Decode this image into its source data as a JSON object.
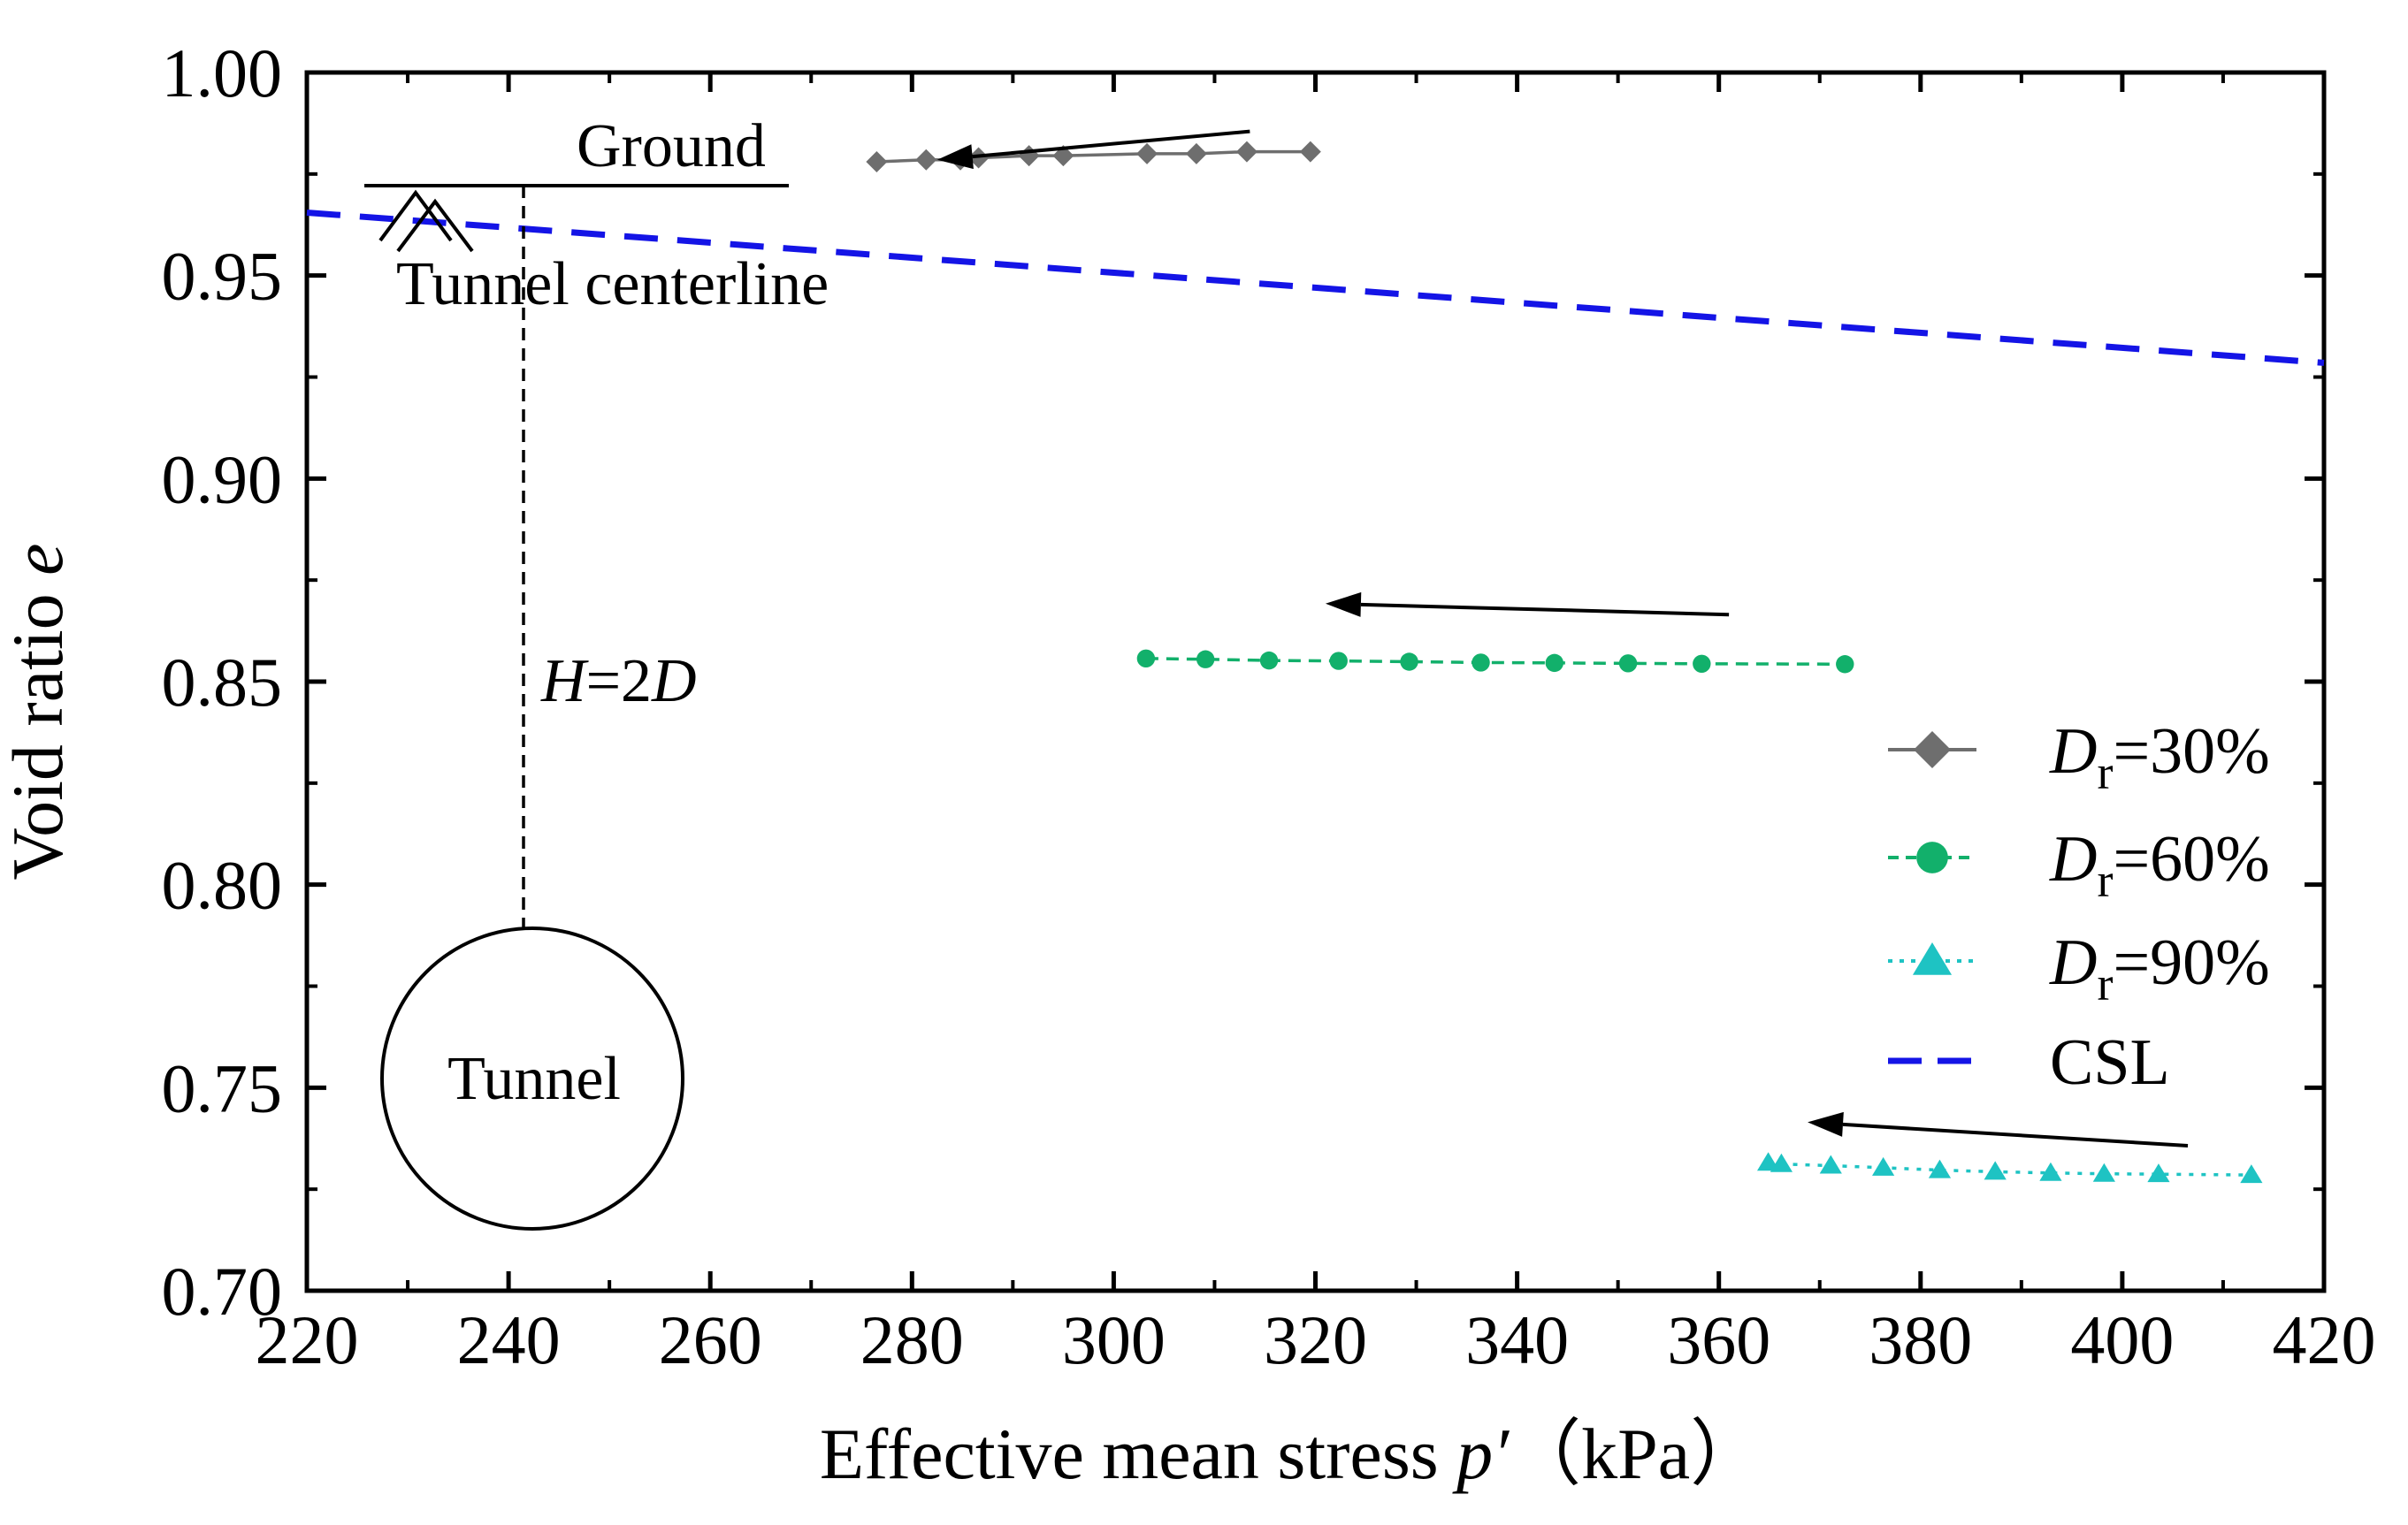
{
  "chart_data": {
    "type": "scatter",
    "xlabel": "Effective mean stress",
    "xlabel_var": "p′",
    "xlabel_unit": "（kPa）",
    "ylabel": "Void ratio",
    "ylabel_var": "e",
    "xlim": [
      220,
      420
    ],
    "ylim": [
      0.7,
      1.0
    ],
    "xticks": [
      220,
      240,
      260,
      280,
      300,
      320,
      340,
      360,
      380,
      400,
      420
    ],
    "yticks": [
      0.7,
      0.75,
      0.8,
      0.85,
      0.9,
      0.95,
      1.0
    ],
    "xtick_labels": [
      "220",
      "240",
      "260",
      "280",
      "300",
      "320",
      "340",
      "360",
      "380",
      "400",
      "420"
    ],
    "ytick_labels": [
      "0.70",
      "0.75",
      "0.80",
      "0.85",
      "0.90",
      "0.95",
      "1.00"
    ],
    "legend_position": "right",
    "series": [
      {
        "name": "Dr=30%",
        "label_main": "D",
        "label_sub": "r",
        "label_rest": "=30%",
        "marker": "diamond",
        "line": "solid",
        "color": "#6e6e6e",
        "x": [
          276.5,
          281.4,
          284.8,
          286.6,
          291.6,
          295.0,
          303.3,
          308.2,
          313.2,
          319.5
        ],
        "y": [
          0.978,
          0.9785,
          0.9785,
          0.979,
          0.9795,
          0.9795,
          0.98,
          0.98,
          0.9805,
          0.9805
        ]
      },
      {
        "name": "Dr=60%",
        "label_main": "D",
        "label_sub": "r",
        "label_rest": "=60%",
        "marker": "circle",
        "line": "dashed",
        "color": "#12b06b",
        "x": [
          303.2,
          309.1,
          315.4,
          322.3,
          329.3,
          336.4,
          343.7,
          351.0,
          358.3,
          372.5
        ],
        "y": [
          0.8557,
          0.8555,
          0.8552,
          0.8551,
          0.8549,
          0.8547,
          0.8546,
          0.8545,
          0.8544,
          0.8543
        ]
      },
      {
        "name": "Dr=90%",
        "label_main": "D",
        "label_sub": "r",
        "label_rest": "=90%",
        "marker": "triangle",
        "line": "dotted",
        "color": "#1ec3c3",
        "x": [
          364.9,
          366.2,
          371.1,
          376.3,
          381.9,
          387.4,
          392.9,
          398.2,
          403.6,
          412.8
        ],
        "y": [
          0.7315,
          0.7312,
          0.7308,
          0.7303,
          0.7297,
          0.7293,
          0.729,
          0.7288,
          0.7287,
          0.7285
        ]
      },
      {
        "name": "CSL",
        "label_main": "CSL",
        "marker": "none",
        "line": "long-dashed",
        "color": "#1414e6",
        "x": [
          220,
          420
        ],
        "y": [
          0.9655,
          0.9285
        ]
      }
    ],
    "arrows": [
      {
        "from": [
          313.5,
          0.9855
        ],
        "to": [
          282.5,
          0.9785
        ]
      },
      {
        "from": [
          361.0,
          0.8665
        ],
        "to": [
          321.0,
          0.8692
        ]
      },
      {
        "from": [
          406.5,
          0.7357
        ],
        "to": [
          368.8,
          0.7415
        ]
      }
    ],
    "inset": {
      "ground_label": "Ground",
      "centerline_label": "Tunnel centerline",
      "depth_label_var1": "H",
      "depth_label_eq": "=2",
      "depth_label_var2": "D",
      "tunnel_label": "Tunnel"
    }
  }
}
